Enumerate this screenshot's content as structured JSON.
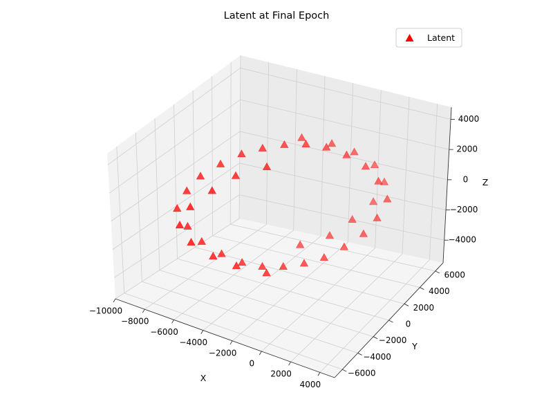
{
  "chart_data": {
    "type": "scatter",
    "projection": "3d",
    "title": "Latent at Final Epoch",
    "xlabel": "X",
    "ylabel": "Y",
    "zlabel": "Z",
    "xlim": [
      -10000,
      5000
    ],
    "ylim": [
      -7000,
      7000
    ],
    "zlim": [
      -5500,
      4800
    ],
    "xticks": [
      "−10000",
      "−8000",
      "−6000",
      "−4000",
      "−2000",
      "0",
      "2000",
      "4000"
    ],
    "yticks": [
      "−6000",
      "−4000",
      "−2000",
      "0",
      "2000",
      "4000",
      "6000"
    ],
    "zticks": [
      "−4000",
      "−2000",
      "0",
      "2000",
      "4000"
    ],
    "grid": true,
    "legend": {
      "position": "top-right",
      "entries": [
        {
          "label": "Latent",
          "marker": "triangle",
          "color": "#ff0000"
        }
      ]
    },
    "series": [
      {
        "name": "Latent",
        "marker": "triangle",
        "color": "#ff0000",
        "shape": "cross-hatched shell of points, approx. ellipsoid centred near (-2500, 0, 0)",
        "points": [
          [
            -2500,
            0,
            4000
          ],
          [
            -1500,
            800,
            3900
          ],
          [
            -3500,
            -800,
            3900
          ],
          [
            -500,
            1500,
            3600
          ],
          [
            -4500,
            -1500,
            3600
          ],
          [
            -2500,
            2000,
            3500
          ],
          [
            -2500,
            -2000,
            3500
          ],
          [
            500,
            2200,
            3000
          ],
          [
            -5500,
            -2200,
            3000
          ],
          [
            -1000,
            3000,
            3000
          ],
          [
            -4000,
            -3000,
            3000
          ],
          [
            1500,
            2800,
            2200
          ],
          [
            -6500,
            -2800,
            2200
          ],
          [
            0,
            4000,
            2200
          ],
          [
            -5000,
            -4000,
            2200
          ],
          [
            2200,
            3200,
            1200
          ],
          [
            -7200,
            -3200,
            1200
          ],
          [
            1000,
            4800,
            1200
          ],
          [
            -6000,
            -4800,
            1200
          ],
          [
            2700,
            3500,
            0
          ],
          [
            -7700,
            -3500,
            0
          ],
          [
            1500,
            5200,
            0
          ],
          [
            -6500,
            -5200,
            0
          ],
          [
            2200,
            3200,
            -1200
          ],
          [
            -7200,
            -3200,
            -1200
          ],
          [
            1000,
            4800,
            -1200
          ],
          [
            -6000,
            -4800,
            -1200
          ],
          [
            1500,
            2800,
            -2200
          ],
          [
            -6500,
            -2800,
            -2200
          ],
          [
            0,
            4000,
            -2200
          ],
          [
            -5000,
            -4000,
            -2200
          ],
          [
            500,
            2200,
            -3000
          ],
          [
            -5500,
            -2200,
            -3000
          ],
          [
            -1000,
            3000,
            -3000
          ],
          [
            -4000,
            -3000,
            -3000
          ],
          [
            -500,
            1500,
            -3600
          ],
          [
            -4500,
            -1500,
            -3600
          ],
          [
            -2500,
            2000,
            -3500
          ],
          [
            -2500,
            -2000,
            -3500
          ],
          [
            -1500,
            800,
            -3900
          ],
          [
            -3500,
            -800,
            -3900
          ],
          [
            -2500,
            0,
            -4000
          ]
        ]
      }
    ]
  }
}
